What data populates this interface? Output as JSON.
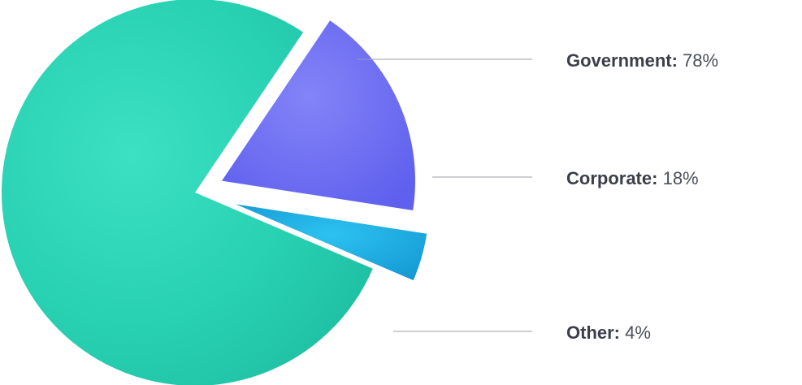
{
  "chart_data": {
    "type": "pie",
    "categories": [
      "Government",
      "Corporate",
      "Other"
    ],
    "values": [
      78,
      18,
      4
    ],
    "unit": "%",
    "colors": [
      "#2ad3b4",
      "#6b6cf2",
      "#1ab1e6"
    ],
    "legend_placement": "right",
    "labels": [
      {
        "name": "Government:",
        "value": "78%"
      },
      {
        "name": "Corporate:",
        "value": "18%"
      },
      {
        "name": "Other:",
        "value": "4%"
      }
    ]
  }
}
